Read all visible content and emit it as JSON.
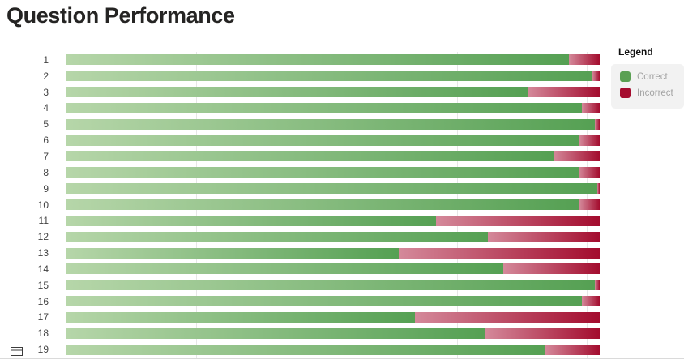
{
  "header": {
    "title": "Question Performance"
  },
  "legend": {
    "title": "Legend",
    "items": [
      {
        "label": "Correct",
        "swatch_color": "#5aa053"
      },
      {
        "label": "Incorrect",
        "swatch_color": "#a50d2f"
      }
    ]
  },
  "icons": {
    "bottom_left": "table-grid-icon"
  },
  "chart_data": {
    "type": "bar",
    "orientation": "horizontal",
    "stacked": true,
    "title": "Question Performance",
    "categories": [
      "1",
      "2",
      "3",
      "4",
      "5",
      "6",
      "7",
      "8",
      "9",
      "10",
      "11",
      "12",
      "13",
      "14",
      "15",
      "16",
      "17",
      "18",
      "19"
    ],
    "series": [
      {
        "name": "Correct",
        "values": [
          94.2,
          98.6,
          86.5,
          96.7,
          99.1,
          96.2,
          91.4,
          96.0,
          99.5,
          96.2,
          69.3,
          79.1,
          62.4,
          81.9,
          99.1,
          96.7,
          65.4,
          78.6,
          89.8
        ],
        "gradient": [
          "#b6d6a9",
          "#55a053"
        ]
      },
      {
        "name": "Incorrect",
        "values": [
          5.8,
          1.4,
          13.5,
          3.3,
          0.9,
          3.8,
          8.6,
          4.0,
          0.5,
          3.8,
          30.7,
          20.9,
          37.6,
          18.1,
          0.9,
          3.3,
          34.6,
          21.4,
          10.2
        ],
        "gradient": [
          "#d4899a",
          "#a30c2e"
        ]
      }
    ],
    "x_axis": {
      "gridlines_pct": [
        0,
        24.4,
        48.9,
        73.3,
        97.6
      ],
      "gridline_color": "#e7e7e7"
    },
    "ylabel": "",
    "xlabel": "",
    "legend_position": "right",
    "units": "percent_of_bar_total"
  }
}
